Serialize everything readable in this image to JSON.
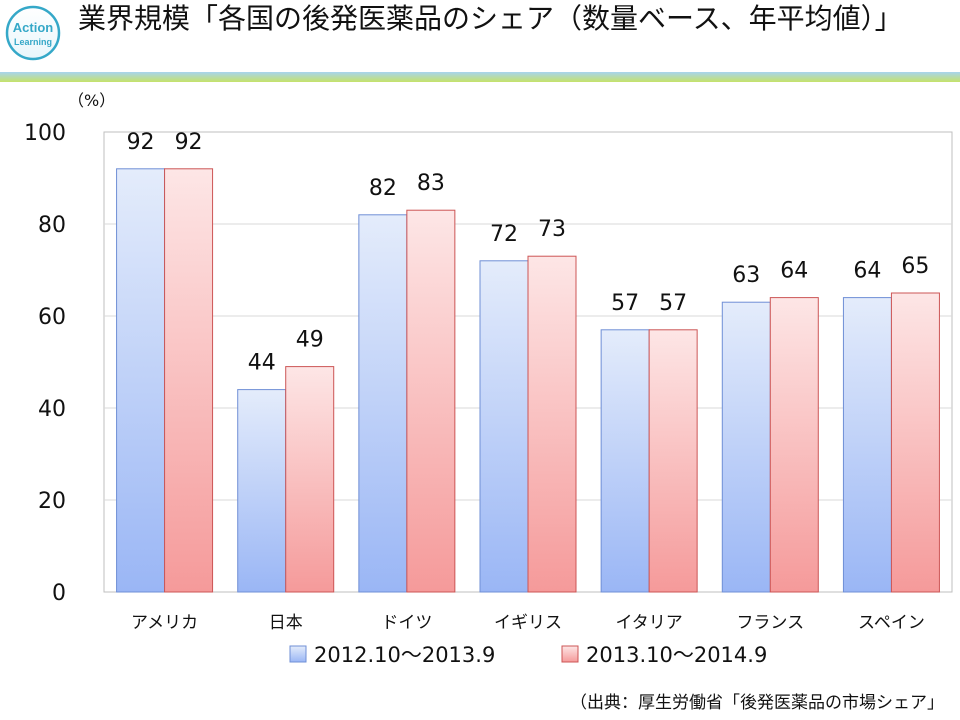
{
  "logo": {
    "line1": "Action",
    "line2": "Learning"
  },
  "title": "業界規模「各国の後発医薬品のシェア（数量ベース、年平均値）」",
  "source": "（出典：厚生労働省「後発医薬品の市場シェア」",
  "colors": {
    "series1_top": "#e4ecfb",
    "series1_bottom": "#9ab6f5",
    "series1_border": "#6f8fd6",
    "series2_top": "#fde6e6",
    "series2_bottom": "#f59a9a",
    "series2_border": "#cc5555",
    "accent_top": "#a8d4ee",
    "accent_bottom": "#c6e26a",
    "logo": "#35a8c8"
  },
  "chart_data": {
    "type": "bar",
    "categories": [
      "アメリカ",
      "日本",
      "ドイツ",
      "イギリス",
      "イタリア",
      "フランス",
      "スペイン"
    ],
    "series": [
      {
        "name": "2012.10～2013.9",
        "values": [
          92,
          44,
          82,
          72,
          57,
          63,
          64
        ]
      },
      {
        "name": "2013.10～2014.9",
        "values": [
          92,
          49,
          83,
          73,
          57,
          64,
          65
        ]
      }
    ],
    "ylabel": "（%）",
    "ylim": [
      0,
      100
    ],
    "yticks": [
      "0",
      "20",
      "40",
      "60",
      "80",
      "100"
    ],
    "grid": true,
    "legend_position": "bottom"
  }
}
